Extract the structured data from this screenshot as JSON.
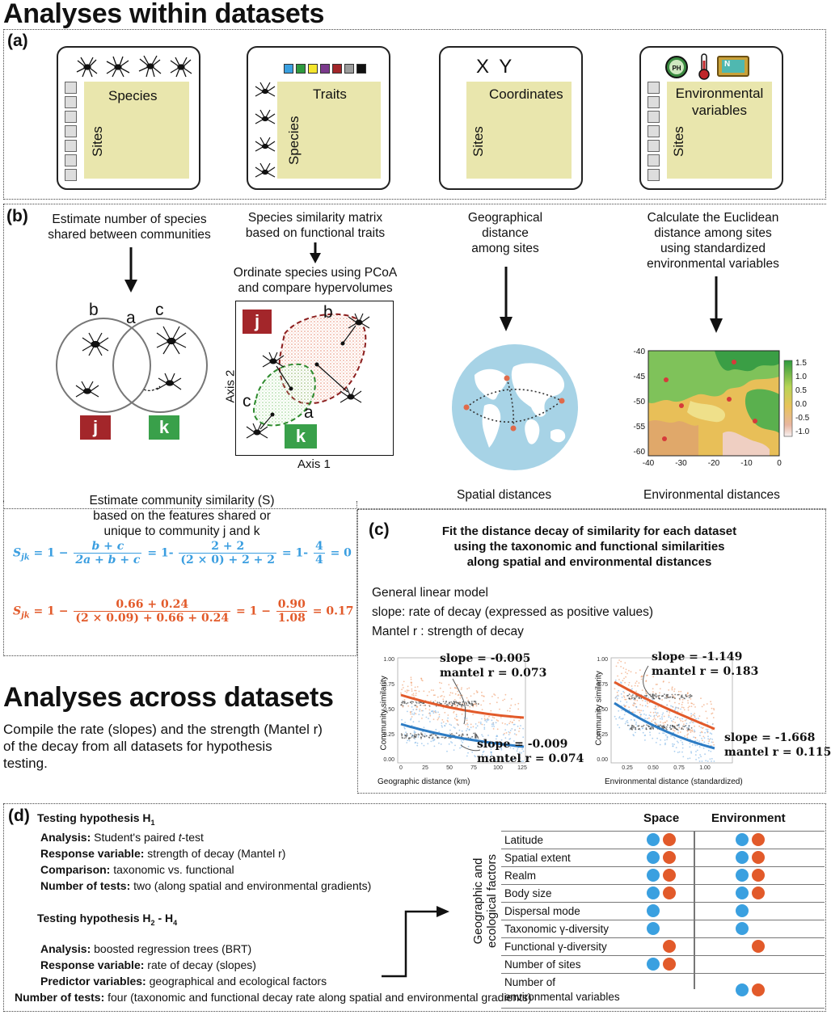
{
  "headings": {
    "within": "Analyses within datasets",
    "across": "Analyses across datasets",
    "across_text": [
      "Compile the rate (slopes) and the strength (Mantel r)",
      "of the decay from all datasets for hypothesis",
      "testing."
    ]
  },
  "panel_a": {
    "label": "(a)",
    "cards": [
      {
        "top": "Species",
        "side": "Sites"
      },
      {
        "top": "Traits",
        "side": "Species"
      },
      {
        "top": "Coordinates",
        "side": "Sites",
        "header": "X Y"
      },
      {
        "top_line1": "Environmental",
        "top_line2": "variables",
        "side": "Sites",
        "ph_badge": "PH",
        "meter_badge": "N"
      }
    ],
    "trait_colors": [
      "#3aa0e0",
      "#2e9a3e",
      "#f4e52c",
      "#7b3a8c",
      "#a3262a",
      "#9c9c9c",
      "#111111"
    ]
  },
  "panel_b": {
    "label": "(b)",
    "col1_text": [
      "Estimate number of species",
      "shared between communities"
    ],
    "venn_labels": {
      "b": "b",
      "a": "a",
      "c": "c"
    },
    "tag_j": "j",
    "tag_k": "k",
    "col2_text": [
      "Species similarity matrix",
      "based on functional traits"
    ],
    "col2_text2": [
      "Ordinate species using PCoA",
      "and compare hypervolumes"
    ],
    "pcoa": {
      "axis1": "Axis 1",
      "axis2": "Axis 2",
      "label_b": "b",
      "label_c": "c",
      "label_a": "a"
    },
    "col3_text": [
      "Geographical",
      "distance",
      "among sites"
    ],
    "col3_caption": "Spatial distances",
    "col4_text": [
      "Calculate the Euclidean",
      "distance among sites",
      "using standardized",
      "environmental variables"
    ],
    "col4_caption": "Environmental distances",
    "heatmap": {
      "x_ticks": [
        "-40",
        "-30",
        "-20",
        "-10",
        "0"
      ],
      "y_ticks": [
        "-40",
        "-45",
        "-50",
        "-55",
        "-60"
      ],
      "legend_ticks": [
        "1.5",
        "1.0",
        "0.5",
        "0.0",
        "-0.5",
        "-1.0"
      ]
    },
    "sim_text": [
      "Estimate community similarity (S)",
      "based on the features  shared or",
      "unique to community j and k"
    ],
    "eq1": {
      "lhs": "S",
      "sub": "jk",
      "one": "= 1 −",
      "n1": "b + c",
      "d1": "2a + b + c",
      "mid": "= 1-",
      "n2": "2 + 2",
      "d2": "(2 × 0) + 2 + 2",
      "mid2": "= 1-",
      "n3": "4",
      "d3": "4",
      "end": "= 0",
      "color": "#3a9ee0"
    },
    "eq2": {
      "lhs": "S",
      "sub": "jk",
      "one": "= 1 −",
      "n1": "0.66 + 0.24",
      "d1": "(2 × 0.09) + 0.66 + 0.24",
      "mid": "= 1 −",
      "n2": "0.90",
      "d2": "1.08",
      "end": "=  0.17",
      "color": "#e25a2a"
    }
  },
  "panel_c": {
    "label": "(c)",
    "title": [
      "Fit the distance decay of similarity for each dataset",
      "using the taxonomic and functional similarities",
      "along spatial and environmental distances"
    ],
    "lines": [
      "General linear model",
      "slope: rate of decay (expressed as positive values)",
      "Mantel r : strength of decay"
    ],
    "plot1": {
      "ylabel": "Community similarity",
      "xlabel": "Geographic distance (km)",
      "x_ticks": [
        "0",
        "25",
        "50",
        "75",
        "100",
        "125"
      ],
      "y_ticks": [
        "1.00",
        "0.75",
        "0.50",
        "0.25",
        "0.00"
      ],
      "ann1": [
        "slope = -0.005",
        "mantel r = 0.073"
      ],
      "ann2": [
        "slope = -0.009",
        "mantel r = 0.074"
      ]
    },
    "plot2": {
      "ylabel": "Community similarity",
      "xlabel": "Environmental distance (standardized)",
      "x_ticks": [
        "0.25",
        "0.50",
        "0.75",
        "1.00"
      ],
      "y_ticks": [
        "1.00",
        "0.75",
        "0.50",
        "0.25",
        "0.00"
      ],
      "ann1": [
        "slope = -1.149",
        "mantel r = 0.183"
      ],
      "ann2": [
        "slope = -1.668",
        "mantel r = 0.115"
      ]
    }
  },
  "panel_d": {
    "label": "(d)",
    "h1_title": "Testing hypothesis H",
    "h1_sub": "1",
    "h1_lines": [
      {
        "k": "Analysis:",
        "v": " Student's paired "
      },
      {
        "k": "Response variable:",
        "v": " strength of decay (Mantel r)"
      },
      {
        "k": "Comparison:",
        "v": " taxonomic vs. functional"
      },
      {
        "k": "Number of tests:",
        "v": " two (along spatial and environmental gradients)"
      }
    ],
    "ttest": "t",
    "ttest_suffix": "-test",
    "h2_title": "Testing hypothesis H",
    "h2_sub1": "2",
    "h2_mid": " - H",
    "h2_sub2": "4",
    "h2_lines": [
      {
        "k": "Analysis:",
        "v": " boosted regression trees (BRT)"
      },
      {
        "k": "Response variable:",
        "v": " rate of decay (slopes)"
      },
      {
        "k": "Predictor variables:",
        "v": " geographical and ecological factors"
      },
      {
        "k": "Number of tests:",
        "v": " four (taxonomic and functional decay rate along spatial and environmental gradients)"
      }
    ],
    "col_space": "Space",
    "col_env": "Environment",
    "side_label": [
      "Geographic and",
      "ecological factors"
    ],
    "factors": [
      {
        "name": "Latitude",
        "space": [
          "b",
          "o"
        ],
        "env": [
          "b",
          "o"
        ]
      },
      {
        "name": "Spatial extent",
        "space": [
          "b",
          "o"
        ],
        "env": [
          "b",
          "o"
        ]
      },
      {
        "name": "Realm",
        "space": [
          "b",
          "o"
        ],
        "env": [
          "b",
          "o"
        ]
      },
      {
        "name": "Body size",
        "space": [
          "b",
          "o"
        ],
        "env": [
          "b",
          "o"
        ]
      },
      {
        "name": "Dispersal mode",
        "space": [
          "b"
        ],
        "env": [
          "b"
        ]
      },
      {
        "name": "Taxonomic γ-diversity",
        "space": [
          "b"
        ],
        "env": [
          "b"
        ]
      },
      {
        "name": "Functional γ-diversity",
        "space": [
          "o"
        ],
        "env": [
          "o"
        ]
      },
      {
        "name": "Number of sites",
        "space": [
          "b",
          "o"
        ],
        "env": []
      },
      {
        "name": "Number of",
        "name2": "environmental variables",
        "space": [],
        "env": [
          "b",
          "o"
        ]
      }
    ],
    "colors": {
      "blue": "#3aa0e0",
      "orange": "#e25a2a"
    }
  }
}
